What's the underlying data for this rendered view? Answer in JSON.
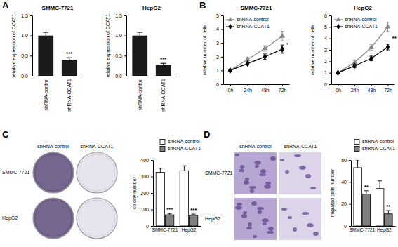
{
  "figure": {
    "panel_labels": [
      "A",
      "B",
      "C",
      "D"
    ],
    "image_grids": [
      {
        "columns": [
          "shRNA-control",
          "shRNA-CCAT1"
        ],
        "rows": [
          "SMMC-7721",
          "HepG2"
        ]
      },
      {
        "columns": [
          "shRNA-control",
          "shRNA-CCAT1"
        ],
        "rows": [
          "SMMC-7721",
          "HepG2"
        ]
      }
    ]
  },
  "chart_data": [
    {
      "type": "bar",
      "title": "SMMC-7721",
      "y_label": "relative expression of CCAT1",
      "categories": [
        "shRNA-control",
        "shRNA-CCAT1"
      ],
      "values": [
        1,
        0.4
      ],
      "errors": [
        0.08,
        0.05
      ],
      "annotations": [
        {
          "text": "***",
          "category": "shRNA-CCAT1"
        }
      ],
      "color": "#1a1a1a",
      "ylim": [
        0,
        1.5
      ],
      "yticks": [
        {
          "value": 0,
          "label": "0.0"
        },
        {
          "value": 0.5,
          "label": "0.5"
        },
        {
          "value": 1,
          "label": "1.0"
        },
        {
          "value": 1.5,
          "label": "1.5"
        }
      ]
    },
    {
      "type": "bar",
      "title": "HepG2",
      "y_label": "relative expression of CCAT1",
      "categories": [
        "shRNA-control",
        "shRNA-CCAT1"
      ],
      "values": [
        1,
        0.27
      ],
      "errors": [
        0.08,
        0.04
      ],
      "annotations": [
        {
          "text": "***",
          "category": "shRNA-CCAT1"
        }
      ],
      "color": "#1a1a1a",
      "ylim": [
        0,
        1.5
      ],
      "yticks": [
        {
          "value": 0,
          "label": "0.0"
        },
        {
          "value": 0.5,
          "label": "0.5"
        },
        {
          "value": 1,
          "label": "1.0"
        },
        {
          "value": 1.5,
          "label": "1.5"
        }
      ]
    },
    {
      "type": "line",
      "title": "SMMC-7721",
      "y_label": "relative number of cells",
      "categories": [
        "0h",
        "24h",
        "48h",
        "72h"
      ],
      "series": [
        {
          "name": "shRNA-control",
          "color": "#888888",
          "marker": "triangle",
          "values": [
            1,
            1.8,
            2.6,
            3.5
          ],
          "errors": [
            0.05,
            0.15,
            0.2,
            0.35
          ]
        },
        {
          "name": "shRNA-CCAT1",
          "color": "#000000",
          "marker": "diamond",
          "values": [
            1,
            1.5,
            2.0,
            2.55
          ],
          "errors": [
            0.05,
            0.1,
            0.2,
            0.3
          ]
        }
      ],
      "annotations": [
        {
          "text": "*",
          "category": "72h"
        }
      ],
      "ylim": [
        0,
        5
      ],
      "yticks": [
        0,
        1,
        2,
        3,
        4,
        5
      ],
      "legend": "top-left"
    },
    {
      "type": "line",
      "title": "HepG2",
      "y_label": "relative number of cells",
      "categories": [
        "0h",
        "24h",
        "48h",
        "72h"
      ],
      "series": [
        {
          "name": "shRNA-control",
          "color": "#888888",
          "marker": "triangle",
          "values": [
            1,
            1.9,
            3.2,
            5.0
          ],
          "errors": [
            0.05,
            0.2,
            0.25,
            0.4
          ]
        },
        {
          "name": "shRNA-CCAT1",
          "color": "#000000",
          "marker": "diamond",
          "values": [
            1,
            1.6,
            2.25,
            3.25
          ],
          "errors": [
            0.05,
            0.15,
            0.2,
            0.25
          ]
        }
      ],
      "annotations": [
        {
          "text": "**",
          "category": "72h"
        }
      ],
      "ylim": [
        0,
        6
      ],
      "yticks": [
        0,
        1,
        2,
        3,
        4,
        5,
        6
      ],
      "legend": "top-left"
    },
    {
      "type": "bar",
      "y_label": "colony number",
      "categories": [
        "SMMC-7721",
        "HepG2"
      ],
      "series": [
        {
          "name": "shRNA-control",
          "color": "#ffffff",
          "values": [
            325,
            335
          ],
          "errors": [
            25,
            30
          ]
        },
        {
          "name": "shRNA-CCAT1",
          "color": "#808080",
          "values": [
            68,
            65
          ],
          "errors": [
            8,
            7
          ]
        }
      ],
      "annotations": [
        {
          "text": "***",
          "category": "SMMC-7721",
          "series": "shRNA-CCAT1"
        },
        {
          "text": "***",
          "category": "HepG2",
          "series": "shRNA-CCAT1"
        }
      ],
      "ylim": [
        0,
        400
      ],
      "yticks": [
        0,
        100,
        200,
        300,
        400
      ],
      "legend": "top-right"
    },
    {
      "type": "bar",
      "y_label": "migrated cells number",
      "categories": [
        "SMMC-7721",
        "HepG2"
      ],
      "series": [
        {
          "name": "shRNA-control",
          "color": "#ffffff",
          "values": [
            53,
            34
          ],
          "errors": [
            7,
            7
          ]
        },
        {
          "name": "shRNA-CCAT1",
          "color": "#808080",
          "values": [
            29,
            11
          ],
          "errors": [
            3,
            3
          ]
        }
      ],
      "annotations": [
        {
          "text": "**",
          "category": "SMMC-7721",
          "series": "shRNA-CCAT1"
        },
        {
          "text": "**",
          "category": "HepG2",
          "series": "shRNA-CCAT1"
        }
      ],
      "ylim": [
        0,
        60
      ],
      "yticks": [
        0,
        20,
        40,
        60
      ],
      "legend": "top-right"
    }
  ]
}
